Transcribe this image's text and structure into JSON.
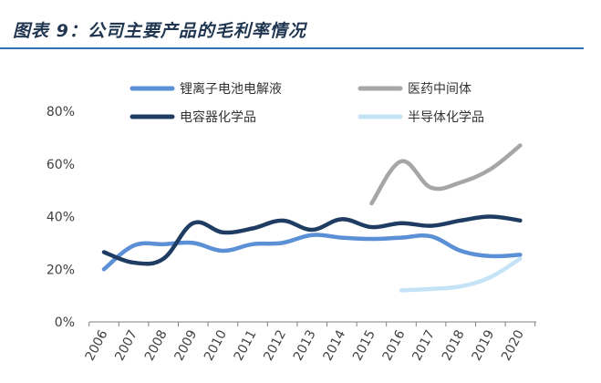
{
  "title": "图表 9：公司主要产品的毛利率情况",
  "chart_data": {
    "type": "line",
    "categories": [
      "2006",
      "2007",
      "2008",
      "2009",
      "2010",
      "2011",
      "2012",
      "2013",
      "2014",
      "2015",
      "2016",
      "2017",
      "2018",
      "2019",
      "2020"
    ],
    "ylim": [
      0,
      80
    ],
    "yticks": [
      "0%",
      "20%",
      "40%",
      "60%",
      "80%"
    ],
    "grid": false,
    "legend_position": "top",
    "series": [
      {
        "name": "锂离子电池电解液",
        "color": "#5b8fd6",
        "values": [
          20,
          29,
          29.5,
          30,
          27,
          29.5,
          30,
          33,
          32,
          31.5,
          32,
          32.5,
          27,
          25,
          25.5
        ]
      },
      {
        "name": "医药中间体",
        "color": "#a6a6a6",
        "values": [
          null,
          null,
          null,
          null,
          null,
          null,
          null,
          null,
          null,
          45,
          61,
          51,
          53,
          58,
          67
        ]
      },
      {
        "name": "电容器化学品",
        "color": "#1f3d63",
        "values": [
          26.5,
          22.5,
          24,
          37.5,
          34,
          35.5,
          38.5,
          35,
          39,
          36,
          37.5,
          36.5,
          38.5,
          40,
          38.5
        ]
      },
      {
        "name": "半导体化学品",
        "color": "#c5e3f6",
        "values": [
          null,
          null,
          null,
          null,
          null,
          null,
          null,
          null,
          null,
          null,
          12,
          12.5,
          13.5,
          17,
          24
        ]
      }
    ]
  }
}
